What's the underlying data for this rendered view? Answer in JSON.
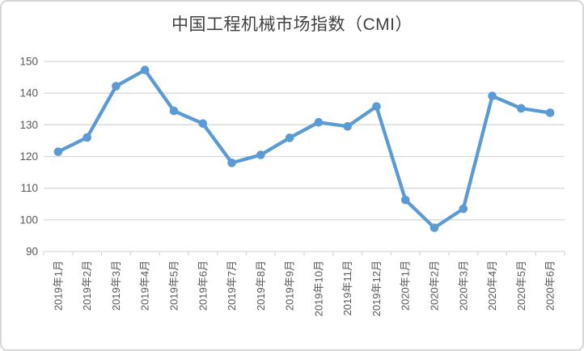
{
  "page": {
    "background": "#ffffff",
    "frame_border_color": "#d6d6d6"
  },
  "chart_data": {
    "type": "line",
    "title": "中国工程机械市场指数（CMI）",
    "categories": [
      "2019年1月",
      "2019年2月",
      "2019年3月",
      "2019年4月",
      "2019年5月",
      "2019年6月",
      "2019年7月",
      "2019年8月",
      "2019年9月",
      "2019年10月",
      "2019年11月",
      "2019年12月",
      "2020年1月",
      "2020年2月",
      "2020年3月",
      "2020年4月",
      "2020年5月",
      "2020年6月"
    ],
    "series": [
      {
        "name": "CMI",
        "color": "#5B9BD5",
        "values": [
          121.5,
          126.0,
          142.2,
          147.3,
          134.4,
          130.4,
          118.0,
          120.5,
          125.9,
          130.8,
          129.5,
          135.8,
          106.3,
          97.5,
          103.5,
          139.1,
          135.2,
          133.8
        ]
      }
    ],
    "xlabel": "",
    "ylabel": "",
    "ylim": [
      90,
      150
    ],
    "ytick_interval": 10,
    "yticks": [
      90,
      100,
      110,
      120,
      130,
      140,
      150
    ],
    "grid": true,
    "legend_position": "none",
    "grid_color": "#D9D9D9",
    "axis_tick_color": "#D9D9D9",
    "axis_label_color": "#595959",
    "title_color": "#404040"
  }
}
